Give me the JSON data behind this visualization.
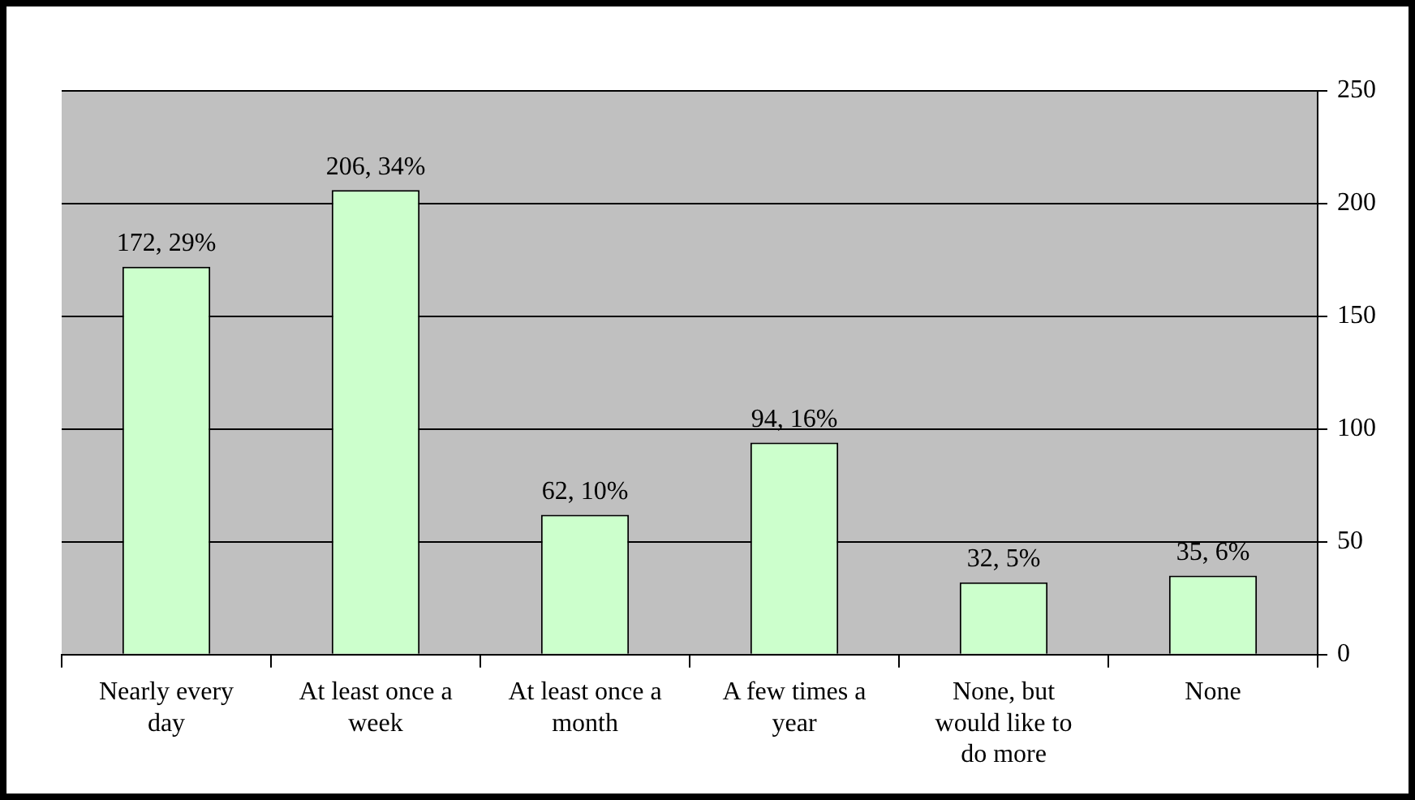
{
  "chart_data": {
    "type": "bar",
    "categories": [
      "Nearly every day",
      "At least once a week",
      "At least once a month",
      "A few times a year",
      "None, but would like to do more",
      "None"
    ],
    "values": [
      172,
      206,
      62,
      94,
      32,
      35
    ],
    "value_labels": [
      "172, 29%",
      "206, 34%",
      "62, 10%",
      "94, 16%",
      "32, 5%",
      "35, 6%"
    ],
    "color": "#ccffcc",
    "ylim": [
      0,
      250
    ],
    "yticks": [
      0,
      50,
      100,
      150,
      200,
      250
    ],
    "grid": "y",
    "legend": false
  }
}
